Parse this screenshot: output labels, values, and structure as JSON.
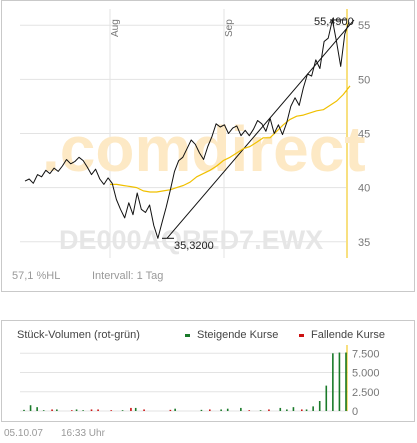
{
  "watermark": {
    "brand": ".comdirect",
    "code": "DE000AQRED7.EWX"
  },
  "info": {
    "hl": "57,1 %HL",
    "interval": "Intervall: 1 Tag"
  },
  "annotations": {
    "high": "55,4900",
    "low": "35,3200"
  },
  "volume": {
    "title": "Stück-Volumen (rot-grün)",
    "legend_up": "Steigende Kurse",
    "legend_down": "Fallende Kurse"
  },
  "footer": {
    "date": "05.10.07",
    "time": "16:33 Uhr"
  },
  "colors": {
    "price_line": "#111111",
    "average_line": "#f0c000",
    "up_volume": "#1a7a2a",
    "down_volume": "#cc1111",
    "watermark_orange": "#fde9c5",
    "watermark_grey": "#e6e6e6"
  },
  "chart_data": [
    {
      "type": "line",
      "x_ticks": [
        "Aug",
        "Sep"
      ],
      "ylim": [
        33.5,
        56.5
      ],
      "y_ticks": [
        35,
        40,
        45,
        50,
        55
      ],
      "y_tick_labels": [
        "35",
        "40",
        "45",
        "50",
        "55"
      ],
      "grid": true,
      "series": [
        {
          "values": [
            40.6,
            40.8,
            40.4,
            41.2,
            41.0,
            41.6,
            41.3,
            41.8,
            41.5,
            42.0,
            42.6,
            42.2,
            42.4,
            42.8,
            42.5,
            41.9,
            41.2,
            41.7,
            40.8,
            40.3,
            40.9,
            40.4,
            38.9,
            38.0,
            37.2,
            38.6,
            37.5,
            39.5,
            38.0,
            37.7,
            38.4,
            36.5,
            35.32,
            36.8,
            38.2,
            39.8,
            41.5,
            42.5,
            42.8,
            43.6,
            44.4,
            44.0,
            43.2,
            42.6,
            43.8,
            44.7,
            45.9,
            45.6,
            45.8,
            45.0,
            45.5,
            45.7,
            44.8,
            45.3,
            44.8,
            45.4,
            46.2,
            45.9,
            45.2,
            46.4,
            45.0,
            45.8,
            44.9,
            46.0,
            47.5,
            48.3,
            47.6,
            49.2,
            50.5,
            50.3,
            51.8,
            51.0,
            53.5,
            53.8,
            55.49,
            53.5,
            51.2,
            54.2,
            55.3
          ]
        },
        {
          "values": [
            40.3,
            40.3,
            40.2,
            40.1,
            40.0,
            39.7,
            39.6,
            39.6,
            39.7,
            39.8,
            40.0,
            40.2,
            40.5,
            41.0,
            41.3,
            41.6,
            42.0,
            42.5,
            42.8,
            43.2,
            43.6,
            43.8,
            44.2,
            44.6,
            44.6,
            45.2,
            45.8,
            46.3,
            46.6,
            46.7,
            46.9,
            47.1,
            47.2,
            47.6,
            48.0,
            48.6,
            49.4
          ]
        },
        {
          "values": [
            35.32,
            55.49
          ]
        }
      ]
    },
    {
      "type": "bar",
      "ylim": [
        0,
        7800
      ],
      "y_ticks": [
        0,
        2500,
        5000,
        7500
      ],
      "y_tick_labels": [
        "0",
        "2.500",
        "5.000",
        "7.500"
      ],
      "grid": true,
      "series": [
        {
          "name": "Steigende Kurse",
          "values": [
            150,
            750,
            500,
            100,
            0,
            200,
            0,
            0,
            200,
            100,
            0,
            0,
            0,
            0,
            0,
            100,
            0,
            400,
            0,
            0,
            0,
            0,
            0,
            300,
            0,
            0,
            0,
            150,
            0,
            0,
            200,
            300,
            0,
            400,
            0,
            0,
            100,
            0,
            0,
            400,
            200,
            500,
            0,
            200,
            600,
            1300,
            3300,
            7500,
            7600,
            7600
          ]
        },
        {
          "name": "Fallende Kurse",
          "values": [
            0,
            0,
            0,
            0,
            200,
            0,
            0,
            100,
            0,
            0,
            200,
            200,
            0,
            100,
            0,
            0,
            400,
            0,
            200,
            0,
            0,
            0,
            150,
            0,
            0,
            0,
            0,
            0,
            200,
            0,
            0,
            0,
            0,
            0,
            100,
            0,
            0,
            200,
            0,
            0,
            0,
            0,
            200,
            0,
            0,
            0,
            0,
            0,
            0,
            0
          ]
        }
      ]
    }
  ]
}
